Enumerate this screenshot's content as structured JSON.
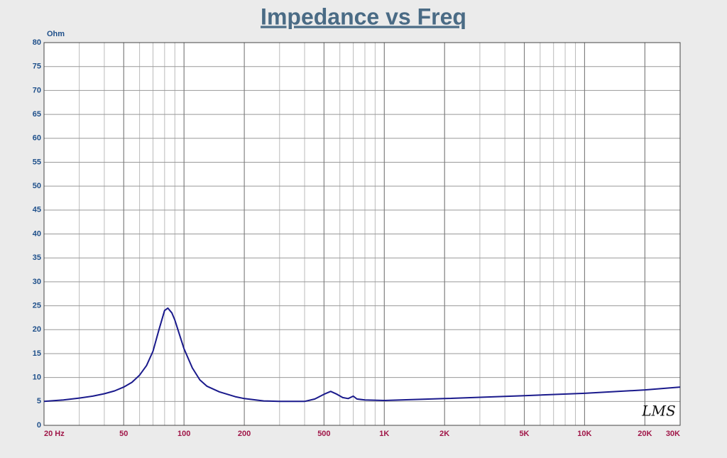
{
  "chart_data": {
    "type": "line",
    "title": "Impedance vs Freq",
    "y_label": "Ohm",
    "watermark": "LMS",
    "x_scale": "log",
    "grid": true,
    "minor_grid": true,
    "xlim": [
      20,
      30000
    ],
    "ylim": [
      0,
      80
    ],
    "xticks": [
      {
        "value": 20,
        "label": "20 Hz"
      },
      50,
      100,
      200,
      500,
      {
        "value": 1000,
        "label": "1K"
      },
      {
        "value": 2000,
        "label": "2K"
      },
      {
        "value": 5000,
        "label": "5K"
      },
      {
        "value": 10000,
        "label": "10K"
      },
      {
        "value": 20000,
        "label": "20K"
      },
      {
        "value": 30000,
        "label": "30K"
      }
    ],
    "yticks": [
      0,
      5,
      10,
      15,
      20,
      25,
      30,
      35,
      40,
      45,
      50,
      55,
      60,
      65,
      70,
      75,
      80
    ],
    "x": [
      20,
      25,
      30,
      35,
      40,
      45,
      50,
      55,
      60,
      65,
      70,
      75,
      80,
      83,
      87,
      90,
      100,
      110,
      120,
      130,
      150,
      180,
      200,
      250,
      300,
      400,
      450,
      500,
      540,
      580,
      620,
      660,
      700,
      730,
      800,
      1000,
      2000,
      5000,
      10000,
      20000,
      30000
    ],
    "series": [
      {
        "color": "#1a1a8c",
        "values": [
          5,
          5.3,
          5.7,
          6.1,
          6.6,
          7.2,
          8,
          9,
          10.5,
          12.5,
          15.5,
          20,
          24,
          24.5,
          23.5,
          22,
          16,
          12,
          9.5,
          8.2,
          7,
          6,
          5.6,
          5.1,
          5,
          5,
          5.5,
          6.5,
          7.1,
          6.5,
          5.8,
          5.6,
          6.1,
          5.5,
          5.3,
          5.2,
          5.6,
          6.2,
          6.7,
          7.4,
          8
        ]
      }
    ]
  }
}
